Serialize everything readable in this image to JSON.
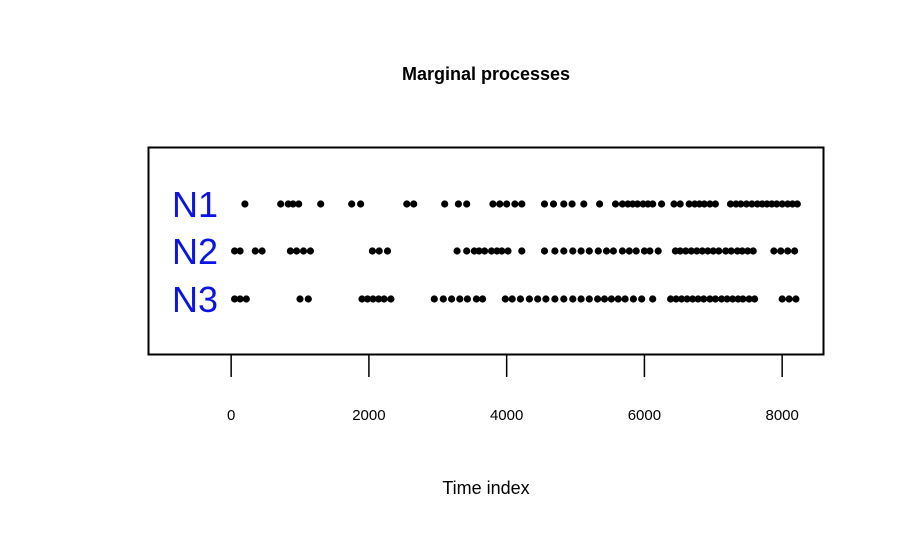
{
  "chart_data": {
    "type": "scatter",
    "title": "Marginal processes",
    "xlabel": "Time index",
    "ylabel": "",
    "xlim": [
      -1200,
      8600
    ],
    "xticks": [
      0,
      2000,
      4000,
      6000,
      8000
    ],
    "tick_labels": [
      "0",
      "2000",
      "4000",
      "6000",
      "8000"
    ],
    "grid": false,
    "box": true,
    "label_color": "#0a14e6",
    "point_color": "#000000",
    "series": [
      {
        "name": "N1",
        "x": [
          200,
          720,
          830,
          900,
          980,
          1300,
          1750,
          1880,
          2550,
          2650,
          3100,
          3300,
          3420,
          3800,
          3900,
          4000,
          4120,
          4220,
          4550,
          4680,
          4830,
          4950,
          5120,
          5350,
          5580,
          5680,
          5760,
          5830,
          5900,
          5980,
          6050,
          6120,
          6250,
          6430,
          6520,
          6650,
          6730,
          6800,
          6870,
          6950,
          7030,
          7250,
          7330,
          7400,
          7480,
          7560,
          7640,
          7710,
          7780,
          7850,
          7920,
          8000,
          8080,
          8150,
          8220
        ]
      },
      {
        "name": "N2",
        "x": [
          50,
          130,
          350,
          450,
          860,
          950,
          1050,
          1150,
          2050,
          2150,
          2270,
          3280,
          3420,
          3530,
          3600,
          3680,
          3780,
          3860,
          3930,
          4020,
          4220,
          4550,
          4700,
          4830,
          4960,
          5080,
          5200,
          5330,
          5450,
          5550,
          5680,
          5780,
          5880,
          6000,
          6080,
          6200,
          6450,
          6520,
          6600,
          6680,
          6760,
          6840,
          6920,
          7000,
          7080,
          7180,
          7260,
          7350,
          7420,
          7500,
          7580,
          7880,
          7980,
          8080,
          8180
        ]
      },
      {
        "name": "N3",
        "x": [
          50,
          130,
          220,
          1000,
          1120,
          1900,
          1980,
          2060,
          2140,
          2220,
          2320,
          2950,
          3080,
          3200,
          3320,
          3430,
          3560,
          3650,
          3980,
          4080,
          4200,
          4330,
          4450,
          4570,
          4700,
          4830,
          4960,
          5080,
          5200,
          5320,
          5420,
          5520,
          5620,
          5720,
          5840,
          5960,
          6120,
          6380,
          6460,
          6540,
          6620,
          6700,
          6780,
          6860,
          6950,
          7030,
          7120,
          7200,
          7280,
          7360,
          7430,
          7520,
          7600,
          8000,
          8100,
          8200
        ]
      }
    ]
  }
}
